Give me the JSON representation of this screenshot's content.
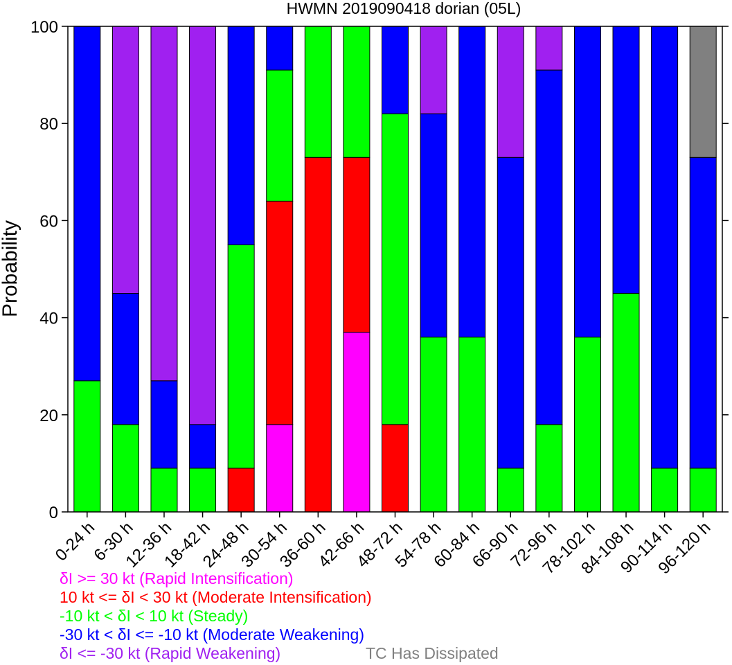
{
  "chart_data": {
    "type": "bar",
    "stacked": true,
    "title": "HWMN 2019090418 dorian (05L)",
    "xlabel": "",
    "ylabel": "Probability",
    "ylim": [
      0,
      100
    ],
    "yticks": [
      0,
      20,
      40,
      60,
      80,
      100
    ],
    "grid": false,
    "categories": [
      "0-24 h",
      "6-30 h",
      "12-36 h",
      "18-42 h",
      "24-48 h",
      "30-54 h",
      "36-60 h",
      "42-66 h",
      "48-72 h",
      "54-78 h",
      "60-84 h",
      "66-90 h",
      "72-96 h",
      "78-102 h",
      "84-108 h",
      "90-114 h",
      "96-120 h"
    ],
    "series": [
      {
        "key": "ri",
        "color": "#ff00ff",
        "values": [
          0,
          0,
          0,
          0,
          0,
          18,
          0,
          37,
          0,
          0,
          0,
          0,
          0,
          0,
          0,
          0,
          0
        ]
      },
      {
        "key": "mi",
        "color": "#ff0000",
        "values": [
          0,
          0,
          0,
          0,
          9,
          46,
          73,
          36,
          18,
          0,
          0,
          0,
          0,
          0,
          0,
          0,
          0
        ]
      },
      {
        "key": "steady",
        "color": "#00ff00",
        "values": [
          27,
          18,
          9,
          9,
          46,
          27,
          27,
          27,
          64,
          36,
          36,
          9,
          18,
          36,
          45,
          9,
          9
        ]
      },
      {
        "key": "mw",
        "color": "#0000ff",
        "values": [
          73,
          27,
          18,
          9,
          45,
          9,
          0,
          0,
          18,
          46,
          64,
          64,
          73,
          64,
          55,
          91,
          64
        ]
      },
      {
        "key": "rw",
        "color": "#a020f0",
        "values": [
          0,
          55,
          73,
          82,
          0,
          0,
          0,
          0,
          0,
          18,
          0,
          27,
          9,
          0,
          0,
          0,
          0
        ]
      },
      {
        "key": "dissipated",
        "color": "#808080",
        "values": [
          0,
          0,
          0,
          0,
          0,
          0,
          0,
          0,
          0,
          0,
          0,
          0,
          0,
          0,
          0,
          0,
          27
        ]
      }
    ]
  },
  "legend": {
    "ri": {
      "text": "δI >= 30 kt (Rapid Intensification)",
      "color": "#ff00ff"
    },
    "mi": {
      "text": "10 kt <= δI < 30 kt (Moderate Intensification)",
      "color": "#ff0000"
    },
    "steady": {
      "text": "-10 kt < δI < 10 kt (Steady)",
      "color": "#00ff00"
    },
    "mw": {
      "text": "-30 kt < δI <= -10 kt (Moderate Weakening)",
      "color": "#0000ff"
    },
    "rw": {
      "text": "δI <= -30 kt (Rapid Weakening)",
      "color": "#a020f0"
    },
    "dissipated": {
      "text": "TC Has Dissipated",
      "color": "#808080"
    }
  }
}
